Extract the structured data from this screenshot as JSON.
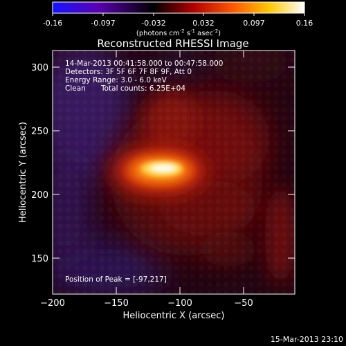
{
  "colorbar": {
    "ticks": [
      "-0.16",
      "-0.097",
      "-0.032",
      "0.032",
      "0.097",
      "0.16"
    ],
    "units_prefix": "(photons cm",
    "units_exp1": "-2",
    "units_mid": " s",
    "units_exp2": "-1",
    "units_mid2": " asec",
    "units_exp3": "-2",
    "units_suffix": ")",
    "colors": [
      "#1414ff",
      "#5a00b4",
      "#000000",
      "#b40000",
      "#ff5a00",
      "#ffc800",
      "#ffffff"
    ]
  },
  "plot": {
    "title": "Reconstructed RHESSI Image",
    "xlabel": "Heliocentric X (arcsec)",
    "ylabel": "Heliocentric Y (arcsec)",
    "xticks": [
      "−200",
      "−150",
      "−100",
      "−50"
    ],
    "yticks": [
      "300",
      "250",
      "200",
      "150"
    ],
    "xlim": [
      -200,
      -10
    ],
    "ylim": [
      120,
      312
    ],
    "time_range": "14-Mar-2013 00:41:58.000 to 00:47:58.000",
    "detectors": "Detectors: 3F 5F 6F 7F 8F 9F, Att 0",
    "energy": "Energy Range: 3.0 - 6.0 keV",
    "method": "Clean",
    "counts": "Total counts: 6.25E+04",
    "peak": "Position of Peak = [-97,217]",
    "source": {
      "x": -97,
      "y": 217
    }
  },
  "footer": {
    "timestamp": "15-Mar-2013 23:10"
  }
}
